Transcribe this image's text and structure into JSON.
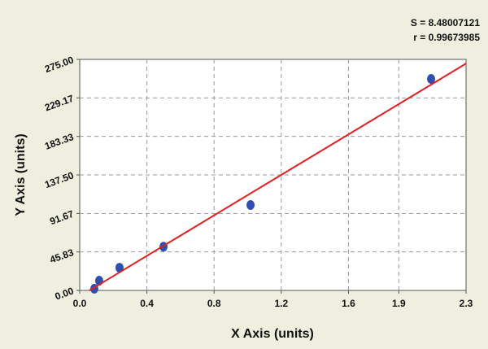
{
  "chart_data": {
    "type": "scatter",
    "xlabel": "X Axis (units)",
    "ylabel": "Y Axis (units)",
    "annotations": [
      "S = 8.48007121",
      "r = 0.99673985"
    ],
    "series": [
      {
        "name": "points",
        "kind": "scatter",
        "color": "#2f4fb0",
        "x": [
          0.087,
          0.116,
          0.237,
          0.499,
          1.017,
          2.092
        ],
        "values": [
          2,
          11.6,
          27,
          52,
          101.7,
          251.8
        ]
      },
      {
        "name": "fit",
        "kind": "line",
        "color": "#e02020",
        "x": [
          0.058,
          2.3
        ],
        "values": [
          0,
          270
        ]
      }
    ],
    "xlim": [
      0,
      2.3
    ],
    "xticks": [
      {
        "value": 0,
        "label": "0.0"
      },
      0.4,
      0.8,
      1.2,
      1.6,
      1.9,
      2.3
    ],
    "ylim": [
      0,
      275
    ],
    "yticks": [
      {
        "value": 0,
        "label": "0.00"
      },
      45.83,
      91.67,
      {
        "value": 137.5,
        "label": "137.50"
      },
      183.33,
      229.17,
      {
        "value": 275,
        "label": "275.00"
      }
    ],
    "grid": true
  }
}
